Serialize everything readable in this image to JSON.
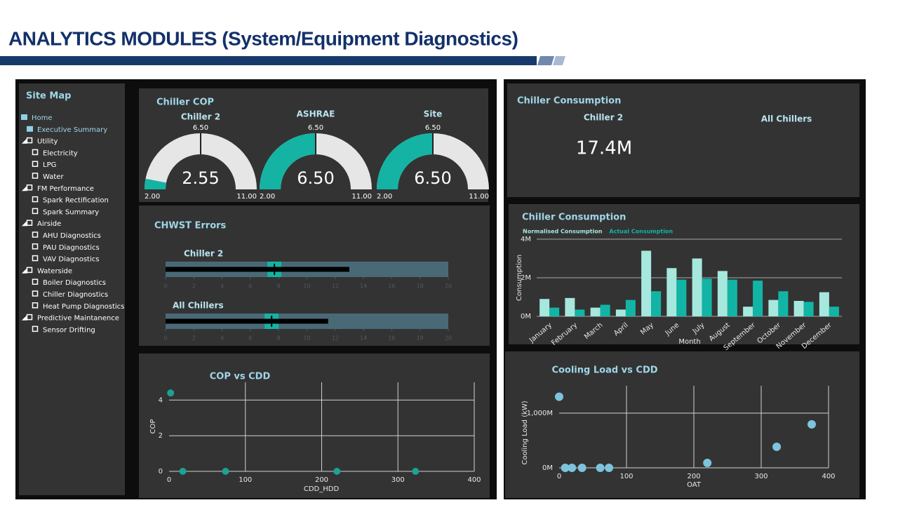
{
  "header": {
    "title": "ANALYTICS MODULES (System/Equipment Diagnostics)"
  },
  "site_map": {
    "title": "Site Map",
    "items": [
      {
        "label": "Home",
        "children": [
          {
            "label": "Executive Summary"
          },
          {
            "label": "Utility",
            "children": [
              {
                "label": "Electricity"
              },
              {
                "label": "LPG"
              },
              {
                "label": "Water"
              }
            ]
          },
          {
            "label": "FM Performance",
            "children": [
              {
                "label": "Spark Rectification"
              },
              {
                "label": "Spark Summary"
              }
            ]
          },
          {
            "label": "Airside",
            "children": [
              {
                "label": "AHU Diagnostics"
              },
              {
                "label": "PAU Diagnostics"
              },
              {
                "label": "VAV Diagnostics"
              }
            ]
          },
          {
            "label": "Waterside",
            "children": [
              {
                "label": "Boiler Diagnostics"
              },
              {
                "label": "Chiller Diagnostics"
              },
              {
                "label": "Heat Pump Diagnostics"
              }
            ]
          },
          {
            "label": "Predictive Maintanence",
            "children": [
              {
                "label": "Sensor Drifting"
              }
            ]
          }
        ]
      }
    ]
  },
  "chiller_cop": {
    "title": "Chiller COP",
    "gauges": [
      {
        "label": "Chiller 2",
        "value": 2.55,
        "min": {
          "value": 2,
          "label": "2.00"
        },
        "max": {
          "value": 11,
          "label": "11.00"
        },
        "target": {
          "value": 6.5,
          "label": "6.50"
        }
      },
      {
        "label": "ASHRAE",
        "value": 6.5,
        "value_label": "6.50",
        "min": {
          "value": 2,
          "label": "2.00"
        },
        "max": {
          "value": 11,
          "label": "11.00"
        },
        "target": {
          "value": 6.5,
          "label": "6.50"
        }
      },
      {
        "label": "Site",
        "value": 6.5,
        "value_label": "6.50",
        "min": {
          "value": 2,
          "label": "2.00"
        },
        "max": {
          "value": 11,
          "label": "11.00"
        },
        "target": {
          "value": 6.5,
          "label": "6.50"
        }
      }
    ]
  },
  "chwst_errors": {
    "title": "CHWST Errors",
    "xlim": [
      0,
      20
    ],
    "xticks": [
      0,
      2,
      4,
      6,
      8,
      10,
      12,
      14,
      16,
      18,
      20
    ],
    "bullets": [
      {
        "label": "Chiller 2",
        "value": 13,
        "target": 7.7
      },
      {
        "label": "All Chillers",
        "value": 11.5,
        "target": 7.5
      }
    ]
  },
  "consumption_card": {
    "title": "Chiller Consumption",
    "label_1": "Chiller 2",
    "label_2": "All Chillers",
    "value": "17.4M"
  },
  "consumption_chart": {
    "type": "bar",
    "title": "Chiller Consumption",
    "x_label": "Month",
    "y_label": "Consumption",
    "categories": [
      "January",
      "February",
      "March",
      "April",
      "May",
      "June",
      "July",
      "August",
      "September",
      "October",
      "November",
      "December"
    ],
    "series": [
      {
        "name": "Normalised Consumption",
        "color": "#a6e8dd",
        "values": [
          900000,
          950000,
          450000,
          350000,
          3400000,
          2500000,
          3000000,
          2350000,
          500000,
          850000,
          800000,
          1250000
        ]
      },
      {
        "name": "Actual Consumption",
        "color": "#12b5a5",
        "values": [
          450000,
          350000,
          600000,
          850000,
          1300000,
          1900000,
          1950000,
          1900000,
          1850000,
          1300000,
          750000,
          500000
        ]
      }
    ],
    "ylim": [
      0,
      4000000
    ],
    "yticks": [
      {
        "value": 0,
        "label": "0M"
      },
      {
        "value": 2000000,
        "label": "2M"
      },
      {
        "value": 4000000,
        "label": "4M"
      }
    ],
    "grid": true
  },
  "cop_vs_cdd": {
    "type": "scatter",
    "title": "COP vs CDD",
    "x_label": "CDD_HDD",
    "y_label": "COP",
    "x": [
      2,
      18,
      74,
      220,
      323
    ],
    "y": [
      4.4,
      0,
      0,
      0,
      0
    ],
    "color": "#1aa394",
    "xlim": [
      0,
      400
    ],
    "xticks": [
      0,
      100,
      200,
      300,
      400
    ],
    "ylim": [
      0,
      5
    ],
    "yticks": [
      0,
      2,
      4
    ],
    "grid": true
  },
  "cooling_load_vs_cdd": {
    "type": "scatter",
    "title": "Cooling Load vs CDD",
    "x_label": "OAT",
    "y_label": "Cooling Load (kW)",
    "x": [
      0,
      9,
      19,
      34,
      61,
      74,
      220,
      323,
      375
    ],
    "y": [
      1300000000,
      0,
      0,
      0,
      0,
      0,
      90000000,
      385000000,
      795000000
    ],
    "color": "#7ec3dd",
    "xlim": [
      0,
      400
    ],
    "xticks": [
      0,
      100,
      200,
      300,
      400
    ],
    "ylim": [
      0,
      1500000000
    ],
    "yticks": [
      {
        "value": 0,
        "label": "0M"
      },
      {
        "value": 1000000000,
        "label": "1,000M"
      }
    ],
    "grid": true
  }
}
